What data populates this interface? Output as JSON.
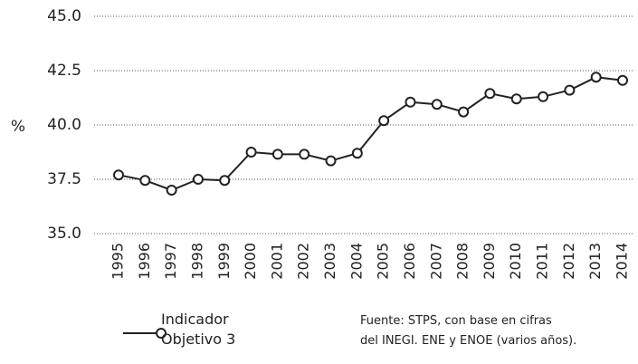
{
  "chart_data": {
    "type": "line",
    "ylabel": "%",
    "categories": [
      "1995",
      "1996",
      "1997",
      "1998",
      "1999",
      "2000",
      "2001",
      "2002",
      "2003",
      "2004",
      "2005",
      "2006",
      "2007",
      "2008",
      "2009",
      "2010",
      "2011",
      "2012",
      "2013",
      "2014"
    ],
    "series": [
      {
        "name": "Indicador Objetivo 3",
        "color": "#222222",
        "values": [
          37.7,
          37.45,
          37.0,
          37.5,
          37.45,
          38.75,
          38.65,
          38.65,
          38.35,
          38.7,
          40.2,
          41.05,
          40.95,
          40.6,
          41.45,
          41.2,
          41.3,
          41.6,
          42.2,
          42.05
        ]
      }
    ],
    "ylim": [
      35,
      45
    ],
    "yticks": [
      {
        "value": 35,
        "label": "35.0"
      },
      37.5,
      {
        "value": 40,
        "label": "40.0"
      },
      42.5,
      {
        "value": 45,
        "label": "45.0"
      }
    ],
    "grid": true,
    "source": [
      "Fuente: STPS, con base en cifras",
      "del INEGI. ENE y ENOE (varios años)."
    ]
  }
}
